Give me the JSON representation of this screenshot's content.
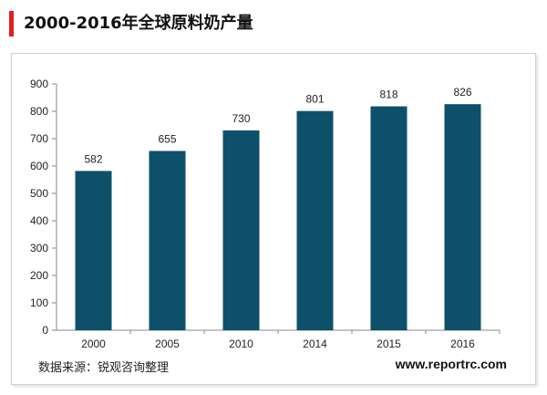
{
  "title": "2000-2016年全球原料奶产量",
  "accent_color": "#e02020",
  "bar_color": "#0e5069",
  "source": "数据来源：锐观咨询整理",
  "website": "www.reportrc.com",
  "chart_data": {
    "type": "bar",
    "title": "2000-2016年全球原料奶产量",
    "xlabel": "",
    "ylabel": "",
    "categories": [
      "2000",
      "2005",
      "2010",
      "2014",
      "2015",
      "2016"
    ],
    "values": [
      582,
      655,
      730,
      801,
      818,
      826
    ],
    "ylim": [
      0,
      900
    ],
    "yticks": [
      0,
      100,
      200,
      300,
      400,
      500,
      600,
      700,
      800,
      900
    ],
    "grid": false,
    "legend": "none"
  }
}
